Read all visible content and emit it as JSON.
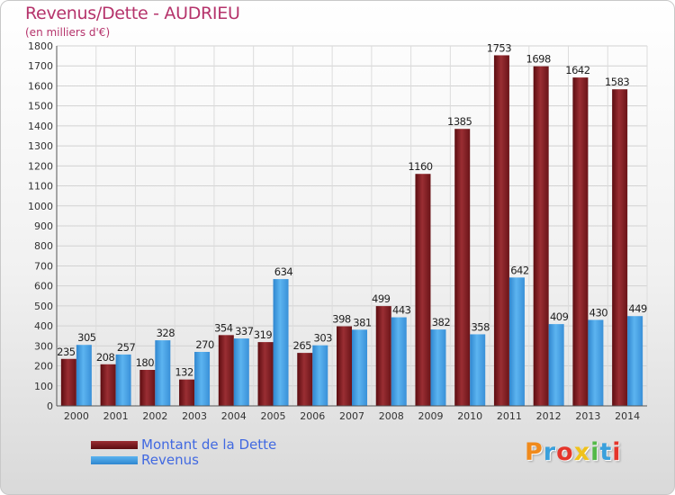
{
  "chart_data": {
    "type": "bar",
    "title": "Revenus/Dette - AUDRIEU",
    "subtitle": "(en milliers d'€)",
    "categories": [
      "2000",
      "2001",
      "2002",
      "2003",
      "2004",
      "2005",
      "2006",
      "2007",
      "2008",
      "2009",
      "2010",
      "2011",
      "2012",
      "2013",
      "2014"
    ],
    "series": [
      {
        "name": "Montant de la Dette",
        "color": "#7a1a1e",
        "values": [
          235,
          208,
          180,
          132,
          354,
          319,
          265,
          398,
          499,
          1160,
          1385,
          1753,
          1698,
          1642,
          1583
        ]
      },
      {
        "name": "Revenus",
        "color": "#3d9be3",
        "values": [
          305,
          257,
          328,
          270,
          337,
          634,
          303,
          381,
          443,
          382,
          358,
          642,
          409,
          430,
          449
        ]
      }
    ],
    "ylim": [
      0,
      1800
    ],
    "yticks": [
      0,
      100,
      200,
      300,
      400,
      500,
      600,
      700,
      800,
      900,
      1000,
      1100,
      1200,
      1300,
      1400,
      1500,
      1600,
      1700,
      1800
    ],
    "grid": true,
    "legend_position": "bottom-left"
  },
  "logo": {
    "letters": [
      "P",
      "r",
      "o",
      "x",
      "i",
      "t",
      "i"
    ],
    "colors": [
      "#f08a1c",
      "#3aa0dc",
      "#e5352b",
      "#f0c21a",
      "#54b948",
      "#3aa0dc",
      "#e5352b"
    ]
  }
}
